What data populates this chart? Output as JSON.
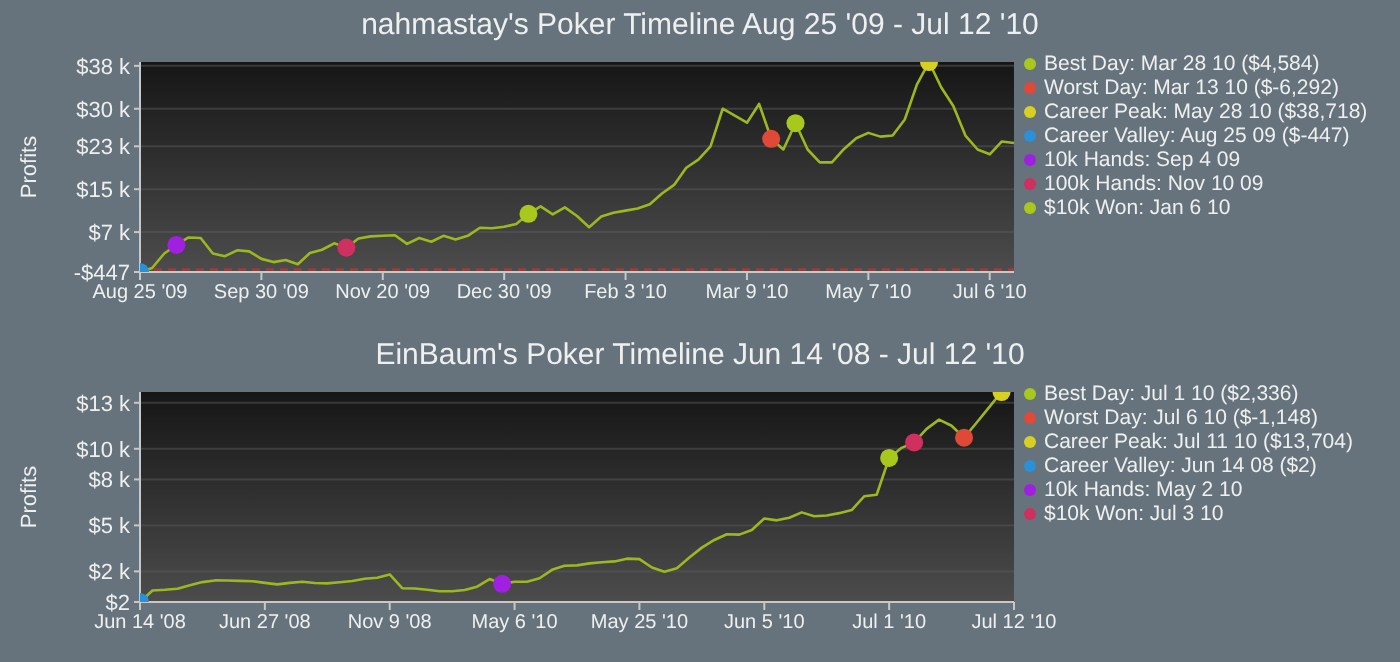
{
  "chart_data": [
    {
      "type": "line",
      "title": "nahmastay's Poker Timeline Aug 25 '09 - Jul 12 '10",
      "ylabel": "Profits",
      "categories": [
        "Aug 25 '09",
        null,
        null,
        null,
        null,
        null,
        null,
        null,
        null,
        null,
        "Sep 30 '09",
        null,
        null,
        null,
        null,
        null,
        null,
        null,
        null,
        null,
        "Nov 20 '09",
        null,
        null,
        null,
        null,
        null,
        null,
        null,
        null,
        null,
        "Dec 30 '09",
        null,
        null,
        null,
        null,
        null,
        null,
        null,
        null,
        null,
        "Feb 3 '10",
        null,
        null,
        null,
        null,
        null,
        null,
        null,
        null,
        null,
        "Mar 9 '10",
        null,
        null,
        null,
        null,
        null,
        null,
        null,
        null,
        null,
        "May 7 '10",
        null,
        null,
        null,
        null,
        null,
        null,
        null,
        null,
        null,
        "Jul 6 '10",
        null,
        null
      ],
      "ylim": [
        -447,
        38718
      ],
      "yticks": [
        {
          "value": -447,
          "label": "-$447"
        },
        {
          "value": 7000,
          "label": "$7 k"
        },
        {
          "value": 15000,
          "label": "$15 k"
        },
        {
          "value": 23000,
          "label": "$23 k"
        },
        {
          "value": 30000,
          "label": "$30 k"
        },
        {
          "value": 38000,
          "label": "$38 k"
        }
      ],
      "grid": "y",
      "legend": "right",
      "ref_lines": [
        {
          "axis": "y",
          "value": 0,
          "color": "#c03030",
          "line_style": "dashed"
        }
      ],
      "series": [
        {
          "color": "#9cb820",
          "values": [
            -447,
            300,
            3000,
            4600,
            6000,
            5900,
            3000,
            2500,
            3600,
            3400,
            2000,
            1400,
            1800,
            1000,
            3100,
            3700,
            4900,
            4100,
            5800,
            6200,
            6300,
            6400,
            4800,
            5900,
            5200,
            6300,
            5600,
            6300,
            7800,
            7700,
            8000,
            8500,
            10400,
            11800,
            10300,
            11600,
            10000,
            7900,
            9900,
            10600,
            11000,
            11400,
            12200,
            14200,
            15800,
            19000,
            20500,
            23000,
            30000,
            28700,
            27400,
            30900,
            24400,
            22400,
            27300,
            22400,
            20000,
            20000,
            22500,
            24500,
            25500,
            24800,
            25000,
            28000,
            34500,
            38718,
            34000,
            30500,
            25000,
            22400,
            21500,
            23900,
            23600
          ]
        },
        {
          "type": "scatter",
          "name": "Best Day: Mar 28 10 ($4,584)",
          "color": "#a8c81c",
          "marker": "circle",
          "values": [
            null,
            null,
            null,
            null,
            null,
            null,
            null,
            null,
            null,
            null,
            null,
            null,
            null,
            null,
            null,
            null,
            null,
            null,
            null,
            null,
            null,
            null,
            null,
            null,
            null,
            null,
            null,
            null,
            null,
            null,
            null,
            null,
            null,
            null,
            null,
            null,
            null,
            null,
            null,
            null,
            null,
            null,
            null,
            null,
            null,
            null,
            null,
            null,
            null,
            null,
            null,
            null,
            null,
            null,
            27300,
            null,
            null,
            null,
            null,
            null,
            null,
            null,
            null,
            null,
            null,
            null,
            null,
            null,
            null,
            null,
            null,
            null,
            null
          ]
        },
        {
          "type": "scatter",
          "name": "Worst Day: Mar 13 10 ($-6,292)",
          "color": "#e04838",
          "marker": "circle",
          "values": [
            null,
            null,
            null,
            null,
            null,
            null,
            null,
            null,
            null,
            null,
            null,
            null,
            null,
            null,
            null,
            null,
            null,
            null,
            null,
            null,
            null,
            null,
            null,
            null,
            null,
            null,
            null,
            null,
            null,
            null,
            null,
            null,
            null,
            null,
            null,
            null,
            null,
            null,
            null,
            null,
            null,
            null,
            null,
            null,
            null,
            null,
            null,
            null,
            null,
            null,
            null,
            null,
            24400,
            null,
            null,
            null,
            null,
            null,
            null,
            null,
            null,
            null,
            null,
            null,
            null,
            null,
            null,
            null,
            null,
            null,
            null,
            null,
            null
          ]
        },
        {
          "type": "scatter",
          "name": "Career Peak: May 28 10 ($38,718)",
          "color": "#d8d020",
          "marker": "circle",
          "values": [
            null,
            null,
            null,
            null,
            null,
            null,
            null,
            null,
            null,
            null,
            null,
            null,
            null,
            null,
            null,
            null,
            null,
            null,
            null,
            null,
            null,
            null,
            null,
            null,
            null,
            null,
            null,
            null,
            null,
            null,
            null,
            null,
            null,
            null,
            null,
            null,
            null,
            null,
            null,
            null,
            null,
            null,
            null,
            null,
            null,
            null,
            null,
            null,
            null,
            null,
            null,
            null,
            null,
            null,
            null,
            null,
            null,
            null,
            null,
            null,
            null,
            null,
            null,
            null,
            null,
            38718,
            null,
            null,
            null,
            null,
            null,
            null,
            null
          ]
        },
        {
          "type": "scatter",
          "name": "Career Valley: Aug 25 09 ($-447)",
          "color": "#2a90d8",
          "marker": "circle",
          "values": [
            -447,
            null,
            null,
            null,
            null,
            null,
            null,
            null,
            null,
            null,
            null,
            null,
            null,
            null,
            null,
            null,
            null,
            null,
            null,
            null,
            null,
            null,
            null,
            null,
            null,
            null,
            null,
            null,
            null,
            null,
            null,
            null,
            null,
            null,
            null,
            null,
            null,
            null,
            null,
            null,
            null,
            null,
            null,
            null,
            null,
            null,
            null,
            null,
            null,
            null,
            null,
            null,
            null,
            null,
            null,
            null,
            null,
            null,
            null,
            null,
            null,
            null,
            null,
            null,
            null,
            null,
            null,
            null,
            null,
            null,
            null,
            null,
            null
          ]
        },
        {
          "type": "scatter",
          "name": "10k Hands: Sep 4 09",
          "color": "#a020e0",
          "marker": "circle",
          "values": [
            null,
            null,
            null,
            4600,
            null,
            null,
            null,
            null,
            null,
            null,
            null,
            null,
            null,
            null,
            null,
            null,
            null,
            null,
            null,
            null,
            null,
            null,
            null,
            null,
            null,
            null,
            null,
            null,
            null,
            null,
            null,
            null,
            null,
            null,
            null,
            null,
            null,
            null,
            null,
            null,
            null,
            null,
            null,
            null,
            null,
            null,
            null,
            null,
            null,
            null,
            null,
            null,
            null,
            null,
            null,
            null,
            null,
            null,
            null,
            null,
            null,
            null,
            null,
            null,
            null,
            null,
            null,
            null,
            null,
            null,
            null,
            null,
            null
          ]
        },
        {
          "type": "scatter",
          "name": "100k Hands: Nov 10 09",
          "color": "#d03060",
          "marker": "circle",
          "values": [
            null,
            null,
            null,
            null,
            null,
            null,
            null,
            null,
            null,
            null,
            null,
            null,
            null,
            null,
            null,
            null,
            null,
            4100,
            null,
            null,
            null,
            null,
            null,
            null,
            null,
            null,
            null,
            null,
            null,
            null,
            null,
            null,
            null,
            null,
            null,
            null,
            null,
            null,
            null,
            null,
            null,
            null,
            null,
            null,
            null,
            null,
            null,
            null,
            null,
            null,
            null,
            null,
            null,
            null,
            null,
            null,
            null,
            null,
            null,
            null,
            null,
            null,
            null,
            null,
            null,
            null,
            null,
            null,
            null,
            null,
            null,
            null,
            null
          ]
        },
        {
          "type": "scatter",
          "name": "$10k Won: Jan 6 10",
          "color": "#a8c81c",
          "marker": "circle",
          "values": [
            null,
            null,
            null,
            null,
            null,
            null,
            null,
            null,
            null,
            null,
            null,
            null,
            null,
            null,
            null,
            null,
            null,
            null,
            null,
            null,
            null,
            null,
            null,
            null,
            null,
            null,
            null,
            null,
            null,
            null,
            null,
            null,
            10400,
            null,
            null,
            null,
            null,
            null,
            null,
            null,
            null,
            null,
            null,
            null,
            null,
            null,
            null,
            null,
            null,
            null,
            null,
            null,
            null,
            null,
            null,
            null,
            null,
            null,
            null,
            null,
            null,
            null,
            null,
            null,
            null,
            null,
            null,
            null,
            null,
            null,
            null,
            null,
            null
          ]
        }
      ]
    },
    {
      "type": "line",
      "title": "EinBaum's Poker Timeline Jun 14 '08 - Jul 12 '10",
      "ylabel": "Profits",
      "categories": [
        "Jun 14 '08",
        null,
        null,
        null,
        null,
        null,
        null,
        null,
        null,
        null,
        "Jun 27 '08",
        null,
        null,
        null,
        null,
        null,
        null,
        null,
        null,
        null,
        "Nov 9 '08",
        null,
        null,
        null,
        null,
        null,
        null,
        null,
        null,
        null,
        "May 6 '10",
        null,
        null,
        null,
        null,
        null,
        null,
        null,
        null,
        null,
        "May 25 '10",
        null,
        null,
        null,
        null,
        null,
        null,
        null,
        null,
        null,
        "Jun 5 '10",
        null,
        null,
        null,
        null,
        null,
        null,
        null,
        null,
        null,
        "Jul 1 '10",
        null,
        null,
        null,
        null,
        null,
        null,
        null,
        null,
        null,
        "Jul 12 '10"
      ],
      "ylim": [
        2,
        13704
      ],
      "yticks": [
        {
          "value": 2,
          "label": "$2"
        },
        {
          "value": 2000,
          "label": "$2 k"
        },
        {
          "value": 5000,
          "label": "$5 k"
        },
        {
          "value": 8000,
          "label": "$8 k"
        },
        {
          "value": 10000,
          "label": "$10 k"
        },
        {
          "value": 13000,
          "label": "$13 k"
        }
      ],
      "grid": "y",
      "legend": "right",
      "series": [
        {
          "color": "#9cb820",
          "values": [
            2,
            750,
            800,
            870,
            1100,
            1300,
            1410,
            1400,
            1380,
            1360,
            1250,
            1150,
            1250,
            1320,
            1240,
            1220,
            1290,
            1370,
            1520,
            1580,
            1800,
            900,
            880,
            800,
            700,
            700,
            780,
            1000,
            1500,
            1190,
            1320,
            1320,
            1550,
            2100,
            2370,
            2390,
            2520,
            2600,
            2650,
            2830,
            2800,
            2250,
            1980,
            2200,
            2900,
            3550,
            4050,
            4420,
            4400,
            4700,
            5450,
            5330,
            5500,
            5850,
            5600,
            5650,
            5800,
            6000,
            6900,
            7000,
            9400,
            10060,
            10410,
            11300,
            11900,
            11500,
            10720,
            11700,
            12700,
            13704,
            null
          ]
        },
        {
          "type": "scatter",
          "name": "Best Day: Jul 1 10 ($2,336)",
          "color": "#a8c81c",
          "marker": "circle",
          "values": [
            null,
            null,
            null,
            null,
            null,
            null,
            null,
            null,
            null,
            null,
            null,
            null,
            null,
            null,
            null,
            null,
            null,
            null,
            null,
            null,
            null,
            null,
            null,
            null,
            null,
            null,
            null,
            null,
            null,
            null,
            null,
            null,
            null,
            null,
            null,
            null,
            null,
            null,
            null,
            null,
            null,
            null,
            null,
            null,
            null,
            null,
            null,
            null,
            null,
            null,
            null,
            null,
            null,
            null,
            null,
            null,
            null,
            null,
            null,
            null,
            9400,
            null,
            null,
            null,
            null,
            null,
            null,
            null,
            null,
            null,
            null
          ]
        },
        {
          "type": "scatter",
          "name": "Worst Day: Jul 6 10 ($-1,148)",
          "color": "#e04838",
          "marker": "circle",
          "values": [
            null,
            null,
            null,
            null,
            null,
            null,
            null,
            null,
            null,
            null,
            null,
            null,
            null,
            null,
            null,
            null,
            null,
            null,
            null,
            null,
            null,
            null,
            null,
            null,
            null,
            null,
            null,
            null,
            null,
            null,
            null,
            null,
            null,
            null,
            null,
            null,
            null,
            null,
            null,
            null,
            null,
            null,
            null,
            null,
            null,
            null,
            null,
            null,
            null,
            null,
            null,
            null,
            null,
            null,
            null,
            null,
            null,
            null,
            null,
            null,
            null,
            null,
            null,
            null,
            null,
            null,
            10720,
            null,
            null,
            null,
            null
          ]
        },
        {
          "type": "scatter",
          "name": "Career Peak: Jul 11 10 ($13,704)",
          "color": "#d8d020",
          "marker": "circle",
          "values": [
            null,
            null,
            null,
            null,
            null,
            null,
            null,
            null,
            null,
            null,
            null,
            null,
            null,
            null,
            null,
            null,
            null,
            null,
            null,
            null,
            null,
            null,
            null,
            null,
            null,
            null,
            null,
            null,
            null,
            null,
            null,
            null,
            null,
            null,
            null,
            null,
            null,
            null,
            null,
            null,
            null,
            null,
            null,
            null,
            null,
            null,
            null,
            null,
            null,
            null,
            null,
            null,
            null,
            null,
            null,
            null,
            null,
            null,
            null,
            null,
            null,
            null,
            null,
            null,
            null,
            null,
            null,
            null,
            null,
            13704,
            null
          ]
        },
        {
          "type": "scatter",
          "name": "Career Valley: Jun 14 08 ($2)",
          "color": "#2a90d8",
          "marker": "circle",
          "values": [
            2,
            null,
            null,
            null,
            null,
            null,
            null,
            null,
            null,
            null,
            null,
            null,
            null,
            null,
            null,
            null,
            null,
            null,
            null,
            null,
            null,
            null,
            null,
            null,
            null,
            null,
            null,
            null,
            null,
            null,
            null,
            null,
            null,
            null,
            null,
            null,
            null,
            null,
            null,
            null,
            null,
            null,
            null,
            null,
            null,
            null,
            null,
            null,
            null,
            null,
            null,
            null,
            null,
            null,
            null,
            null,
            null,
            null,
            null,
            null,
            null,
            null,
            null,
            null,
            null,
            null,
            null,
            null,
            null,
            null,
            null
          ]
        },
        {
          "type": "scatter",
          "name": "10k Hands: May 2 10",
          "color": "#a020e0",
          "marker": "circle",
          "values": [
            null,
            null,
            null,
            null,
            null,
            null,
            null,
            null,
            null,
            null,
            null,
            null,
            null,
            null,
            null,
            null,
            null,
            null,
            null,
            null,
            null,
            null,
            null,
            null,
            null,
            null,
            null,
            null,
            null,
            1190,
            null,
            null,
            null,
            null,
            null,
            null,
            null,
            null,
            null,
            null,
            null,
            null,
            null,
            null,
            null,
            null,
            null,
            null,
            null,
            null,
            null,
            null,
            null,
            null,
            null,
            null,
            null,
            null,
            null,
            null,
            null,
            null,
            null,
            null,
            null,
            null,
            null,
            null,
            null,
            null,
            null
          ]
        },
        {
          "type": "scatter",
          "name": "$10k Won: Jul 3 10",
          "color": "#d03060",
          "marker": "circle",
          "values": [
            null,
            null,
            null,
            null,
            null,
            null,
            null,
            null,
            null,
            null,
            null,
            null,
            null,
            null,
            null,
            null,
            null,
            null,
            null,
            null,
            null,
            null,
            null,
            null,
            null,
            null,
            null,
            null,
            null,
            null,
            null,
            null,
            null,
            null,
            null,
            null,
            null,
            null,
            null,
            null,
            null,
            null,
            null,
            null,
            null,
            null,
            null,
            null,
            null,
            null,
            null,
            null,
            null,
            null,
            null,
            null,
            null,
            null,
            null,
            null,
            null,
            null,
            10410,
            null,
            null,
            null,
            null,
            null,
            null,
            null,
            null
          ]
        }
      ]
    }
  ]
}
